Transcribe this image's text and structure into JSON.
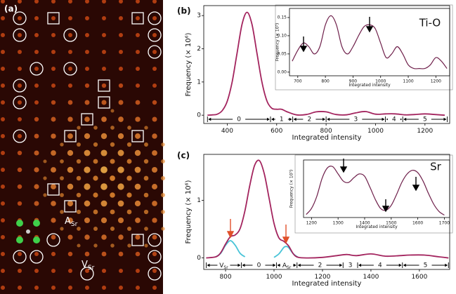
{
  "image": {
    "label": "(a)",
    "annotations": [
      {
        "main": "A",
        "sub": "Sr"
      },
      {
        "main": "V",
        "sub": "Sr"
      }
    ]
  },
  "chart_data": [
    {
      "type": "line",
      "panel_label": "(b)",
      "x_label": "Integrated intensity",
      "y_label": "Frequency (× 10⁶)",
      "xlim": [
        305,
        1300
      ],
      "ylim": [
        -0.25,
        3.3
      ],
      "xticks": [
        400,
        600,
        800,
        1000,
        1200
      ],
      "yticks": [
        0,
        1,
        2,
        3
      ],
      "series": [
        {
          "color": "#a3245e",
          "x": [
            320,
            340,
            360,
            380,
            400,
            420,
            440,
            460,
            480,
            500,
            520,
            540,
            560,
            580,
            600,
            620,
            640,
            680,
            720,
            760,
            800,
            840,
            880,
            920,
            960,
            1000,
            1040,
            1080,
            1120,
            1160,
            1200,
            1240,
            1280
          ],
          "values": [
            0,
            0.01,
            0.03,
            0.14,
            0.42,
            1.01,
            1.88,
            2.74,
            3.1,
            2.74,
            1.88,
            1.01,
            0.44,
            0.21,
            0.18,
            0.18,
            0.11,
            0.01,
            0.02,
            0.1,
            0.1,
            0.02,
            0.01,
            0.07,
            0.11,
            0.03,
            0.04,
            0.04,
            0.01,
            0.02,
            0.04,
            0.02,
            0
          ]
        }
      ],
      "regions": {
        "bounds": [
          320,
          575,
          665,
          800,
          1040,
          1110,
          1290
        ],
        "labels": [
          "0",
          "1",
          "2",
          "3",
          "4",
          "5"
        ]
      }
    },
    {
      "type": "line",
      "annotation": "Ti-O",
      "x_label": "Integrated intensity",
      "y_label": "Frequency (× 10⁵)",
      "xlim": [
        670,
        1250
      ],
      "ylim": [
        -0.01,
        0.175
      ],
      "xticks": [
        700,
        800,
        900,
        1000,
        1100,
        1200
      ],
      "yticks": [
        {
          "value": 0,
          "label": "0.00"
        },
        {
          "value": 0.05,
          "label": "0.05"
        },
        {
          "value": 0.1,
          "label": "0.10"
        },
        {
          "value": 0.15,
          "label": "0.15"
        }
      ],
      "series": [
        {
          "color": "#6e1f4a",
          "x": [
            680,
            700,
            720,
            740,
            760,
            780,
            800,
            820,
            840,
            860,
            880,
            900,
            920,
            940,
            960,
            980,
            1000,
            1020,
            1040,
            1060,
            1080,
            1100,
            1120,
            1140,
            1160,
            1180,
            1200,
            1220,
            1240
          ],
          "values": [
            0.03,
            0.06,
            0.08,
            0.07,
            0.05,
            0.07,
            0.13,
            0.155,
            0.13,
            0.07,
            0.05,
            0.07,
            0.1,
            0.125,
            0.13,
            0.12,
            0.08,
            0.04,
            0.05,
            0.07,
            0.05,
            0.02,
            0.01,
            0.01,
            0.01,
            0.02,
            0.04,
            0.03,
            0.01
          ]
        }
      ]
    },
    {
      "type": "line",
      "panel_label": "(c)",
      "x_label": "Integrated intensity",
      "y_label": "Frequency (× 10⁶)",
      "xlim": [
        710,
        1725
      ],
      "ylim": [
        -0.2,
        1.8
      ],
      "xticks": [
        800,
        1000,
        1200,
        1400,
        1600
      ],
      "yticks": [
        0,
        1
      ],
      "series": [
        {
          "color": "#49c4d8",
          "x": [
            760,
            780,
            800,
            820,
            840,
            860,
            880
          ],
          "values": [
            0.02,
            0.08,
            0.22,
            0.3,
            0.22,
            0.08,
            0.02
          ]
        },
        {
          "color": "#49c4d8",
          "x": [
            1000,
            1020,
            1040,
            1050,
            1060,
            1080,
            1100
          ],
          "values": [
            0.01,
            0.07,
            0.18,
            0.2,
            0.18,
            0.07,
            0.01
          ]
        },
        {
          "color": "#a3245e",
          "x": [
            720,
            760,
            780,
            800,
            820,
            840,
            860,
            880,
            900,
            920,
            940,
            960,
            980,
            1000,
            1020,
            1040,
            1060,
            1080,
            1100,
            1140,
            1200,
            1260,
            1300,
            1340,
            1400,
            1460,
            1520,
            1560,
            1620,
            1680,
            1720
          ],
          "values": [
            0,
            0.02,
            0.09,
            0.24,
            0.37,
            0.4,
            0.51,
            0.82,
            1.26,
            1.61,
            1.69,
            1.46,
            1.03,
            0.6,
            0.35,
            0.29,
            0.21,
            0.07,
            0.01,
            0,
            0.01,
            0.04,
            0.06,
            0.04,
            0.07,
            0.03,
            0.04,
            0.05,
            0.05,
            0.02,
            0
          ]
        }
      ],
      "regions": {
        "bounds": [
          720,
          865,
          1010,
          1095,
          1285,
          1345,
          1530,
          1720
        ],
        "labels": [
          {
            "main": "V",
            "sub": "Sr"
          },
          "0",
          {
            "main": "A",
            "sub": "Sr"
          },
          "2",
          "3",
          "4",
          "5"
        ]
      }
    },
    {
      "type": "line",
      "annotation": "Sr",
      "x_label": "Integrated intensity",
      "y_label": "Frequency (× 10⁵)",
      "xlim": [
        1170,
        1720
      ],
      "ylim": [
        0,
        0.95
      ],
      "xticks": [
        1200,
        1300,
        1400,
        1500,
        1600,
        1700
      ],
      "series": [
        {
          "color": "#6e1f4a",
          "x": [
            1180,
            1200,
            1220,
            1240,
            1260,
            1280,
            1300,
            1320,
            1340,
            1360,
            1380,
            1400,
            1420,
            1440,
            1460,
            1480,
            1500,
            1520,
            1540,
            1560,
            1580,
            1600,
            1620,
            1640,
            1660,
            1680,
            1700
          ],
          "values": [
            0.05,
            0.15,
            0.35,
            0.65,
            0.82,
            0.84,
            0.72,
            0.6,
            0.58,
            0.66,
            0.72,
            0.68,
            0.5,
            0.3,
            0.15,
            0.12,
            0.2,
            0.38,
            0.58,
            0.72,
            0.78,
            0.74,
            0.6,
            0.4,
            0.22,
            0.1,
            0.04
          ]
        }
      ]
    }
  ]
}
